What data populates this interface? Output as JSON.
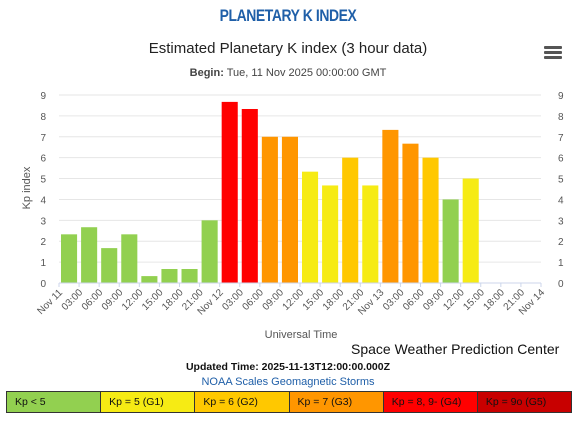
{
  "header": {
    "page_title": "PLANETARY K INDEX",
    "begin_label": "Begin:",
    "begin_value": "Tue, 11 Nov 2025 00:00:00 GMT"
  },
  "menu": {
    "icon": "hamburger-menu-icon"
  },
  "chart_data": {
    "type": "bar",
    "title": "Estimated Planetary K index (3 hour data)",
    "xlabel": "Universal Time",
    "ylabel": "Kp index",
    "ylim": [
      0,
      9
    ],
    "yticks": [
      0,
      1,
      2,
      3,
      4,
      5,
      6,
      7,
      8,
      9
    ],
    "xtick_labels": [
      "Nov 11",
      "03:00",
      "06:00",
      "09:00",
      "12:00",
      "15:00",
      "18:00",
      "21:00",
      "Nov 12",
      "03:00",
      "06:00",
      "09:00",
      "12:00",
      "15:00",
      "18:00",
      "21:00",
      "Nov 13",
      "03:00",
      "06:00",
      "09:00",
      "12:00",
      "15:00",
      "18:00",
      "21:00",
      "Nov 14"
    ],
    "values": [
      2.33,
      2.67,
      1.67,
      2.33,
      0.33,
      0.67,
      0.67,
      3.0,
      8.67,
      8.33,
      7.0,
      7.0,
      5.33,
      4.67,
      6.0,
      4.67,
      7.33,
      6.67,
      6.0,
      4.0,
      5.0
    ],
    "grid": true,
    "color_scale": {
      "below5": "#92d050",
      "g1": "#f6eb14",
      "g2": "#ffc800",
      "g3": "#ff9600",
      "g4": "#ff0000",
      "g5": "#c80000"
    }
  },
  "footer": {
    "credit": "Space Weather Prediction Center",
    "updated": "Updated Time: 2025-11-13T12:00:00.000Z",
    "noaa_link": "NOAA Scales Geomagnetic Storms"
  },
  "legend": [
    {
      "label": "Kp < 5",
      "color": "#92d050"
    },
    {
      "label": "Kp = 5 (G1)",
      "color": "#f6eb14"
    },
    {
      "label": "Kp = 6 (G2)",
      "color": "#ffc800"
    },
    {
      "label": "Kp = 7 (G3)",
      "color": "#ff9600"
    },
    {
      "label": "Kp = 8, 9- (G4)",
      "color": "#ff0000"
    },
    {
      "label": "Kp = 9o (G5)",
      "color": "#c80000"
    }
  ]
}
